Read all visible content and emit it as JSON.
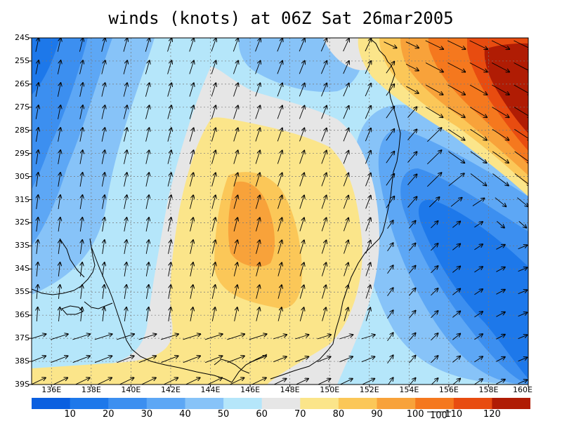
{
  "title": "winds (knots) at 06Z Sat 26mar2005",
  "latitude_labels": [
    "24S",
    "25S",
    "26S",
    "27S",
    "28S",
    "29S",
    "30S",
    "31S",
    "32S",
    "33S",
    "34S",
    "35S",
    "36S",
    "37S",
    "38S",
    "39S"
  ],
  "longitude_labels": [
    "136E",
    "138E",
    "140E",
    "142E",
    "144E",
    "146E",
    "148E",
    "150E",
    "152E",
    "154E",
    "156E",
    "158E",
    "160E"
  ],
  "legend": {
    "levels": [
      "10",
      "20",
      "30",
      "40",
      "50",
      "60",
      "70",
      "80",
      "90",
      "100",
      "110",
      "120"
    ],
    "colors": [
      "#0a5fe0",
      "#1d78ea",
      "#3c8ff0",
      "#5da7f5",
      "#87c3f8",
      "#b5e6fa",
      "#e6e6e6",
      "#fbe58a",
      "#fbc758",
      "#f8a23a",
      "#f5781e",
      "#e84c10",
      "#b01c04"
    ],
    "reference_vector_label": "100"
  },
  "map": {
    "lon_range": [
      135,
      160
    ],
    "lat_range": [
      -39,
      -24
    ],
    "contour_regions": [
      {
        "level": "70",
        "color": "#e6e6e6"
      },
      {
        "level": "80",
        "color": "#fbe58a"
      },
      {
        "level": "90",
        "color": "#fbc758"
      },
      {
        "level": "100",
        "color": "#f8a23a"
      },
      {
        "level": "110",
        "color": "#f5781e"
      },
      {
        "level": "120",
        "color": "#e84c10"
      },
      {
        "level": "20",
        "color": "#1d78ea"
      },
      {
        "level": "10",
        "color": "#0a5fe0"
      }
    ]
  }
}
